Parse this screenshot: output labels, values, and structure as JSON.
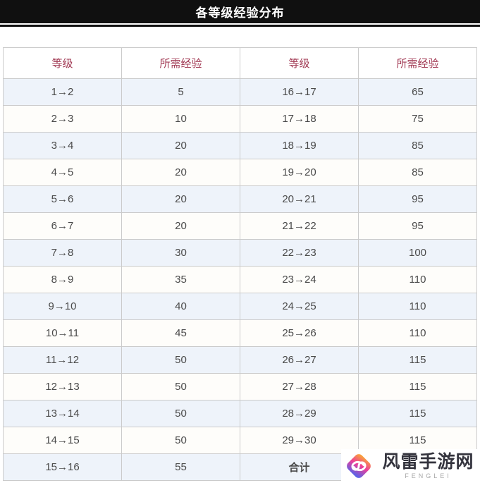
{
  "page": {
    "title": "各等级经验分布"
  },
  "table": {
    "headers": [
      "等级",
      "所需经验",
      "等级",
      "所需经验"
    ],
    "rows": [
      [
        "1→2",
        "5",
        "16→17",
        "65"
      ],
      [
        "2→3",
        "10",
        "17→18",
        "75"
      ],
      [
        "3→4",
        "20",
        "18→19",
        "85"
      ],
      [
        "4→5",
        "20",
        "19→20",
        "85"
      ],
      [
        "5→6",
        "20",
        "20→21",
        "95"
      ],
      [
        "6→7",
        "20",
        "21→22",
        "95"
      ],
      [
        "7→8",
        "30",
        "22→23",
        "100"
      ],
      [
        "8→9",
        "35",
        "23→24",
        "110"
      ],
      [
        "9→10",
        "40",
        "24→25",
        "110"
      ],
      [
        "10→11",
        "45",
        "25→26",
        "110"
      ],
      [
        "11→12",
        "50",
        "26→27",
        "115"
      ],
      [
        "12→13",
        "50",
        "27→28",
        "115"
      ],
      [
        "13→14",
        "50",
        "28→29",
        "115"
      ],
      [
        "14→15",
        "50",
        "29→30",
        "115"
      ],
      [
        "15→16",
        "55",
        "合计",
        ""
      ]
    ],
    "total_label": "合计"
  },
  "watermark": {
    "site_name": "风雷手游网",
    "site_name_en": "FENGLEI"
  },
  "colors": {
    "title_bar": "#101010",
    "header_text": "#a23b55",
    "total_text": "#e9495f",
    "stripe_blue": "#eef3fa",
    "stripe_white": "#fefdfa",
    "border": "#cbcbcb",
    "logo_gradient_top": "#f9a13c",
    "logo_gradient_mid": "#ee3f98",
    "logo_gradient_bottom": "#5a63e8"
  }
}
